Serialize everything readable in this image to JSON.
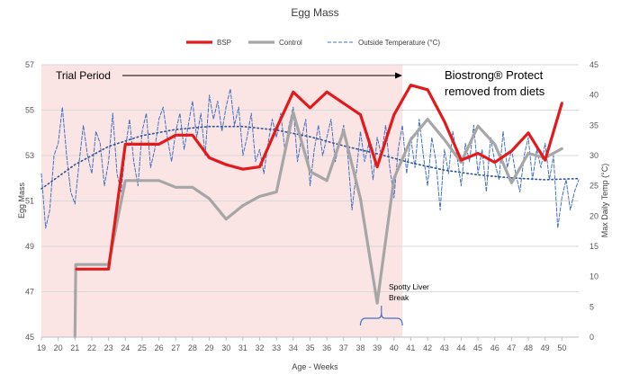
{
  "chart_data": {
    "type": "line",
    "title": "Egg Mass",
    "xlabel": "Age - Weeks",
    "ylabel": "Egg Mass",
    "y2label": "Max Daily Temp (°C)",
    "x_categories": [
      "19",
      "20",
      "21",
      "22",
      "23",
      "24",
      "25",
      "26",
      "27",
      "28",
      "29",
      "30",
      "31",
      "32",
      "33",
      "34",
      "35",
      "36",
      "37",
      "38",
      "39",
      "40",
      "41",
      "42",
      "43",
      "44",
      "45",
      "46",
      "47",
      "48",
      "49",
      "50"
    ],
    "xlim": [
      19,
      51
    ],
    "ylim": [
      45,
      57
    ],
    "y_ticks": [
      45,
      47,
      49,
      51,
      53,
      55,
      57
    ],
    "y2lim": [
      0,
      45
    ],
    "y2_ticks": [
      0,
      5,
      10,
      15,
      20,
      25,
      30,
      35,
      40,
      45
    ],
    "legend": {
      "placement": "top-center",
      "entries": [
        "BSP",
        "Control",
        "Outside Temperature (°C)"
      ]
    },
    "colors": {
      "bsp": "#e31a1c",
      "control": "#a6a6a6",
      "temperature": "#4472c4",
      "trial_shade": "#fbe4e4",
      "grid": "#d9d9d9",
      "bracket": "#4472c4"
    },
    "series": [
      {
        "name": "BSP",
        "axis": "left",
        "points": [
          [
            21.1,
            48.0
          ],
          [
            22,
            48.0
          ],
          [
            23,
            48.0
          ],
          [
            24,
            53.5
          ],
          [
            25,
            53.5
          ],
          [
            26,
            53.5
          ],
          [
            27,
            53.9
          ],
          [
            28,
            53.9
          ],
          [
            29,
            52.9
          ],
          [
            30,
            52.6
          ],
          [
            31,
            52.4
          ],
          [
            32,
            52.5
          ],
          [
            33,
            54.2
          ],
          [
            34,
            55.8
          ],
          [
            35,
            55.1
          ],
          [
            36,
            55.8
          ],
          [
            37,
            55.3
          ],
          [
            38,
            54.8
          ],
          [
            39,
            52.5
          ],
          [
            40,
            54.8
          ],
          [
            41,
            56.1
          ],
          [
            42,
            55.9
          ],
          [
            43,
            54.5
          ],
          [
            44,
            52.8
          ],
          [
            45,
            53.1
          ],
          [
            46,
            52.7
          ],
          [
            47,
            53.2
          ],
          [
            48,
            54.0
          ],
          [
            49,
            52.8
          ],
          [
            50,
            55.3
          ]
        ]
      },
      {
        "name": "Control",
        "axis": "left",
        "points": [
          [
            21,
            45.0
          ],
          [
            21.05,
            48.2
          ],
          [
            22,
            48.2
          ],
          [
            23,
            48.2
          ],
          [
            24,
            51.9
          ],
          [
            25,
            51.9
          ],
          [
            26,
            51.9
          ],
          [
            27,
            51.6
          ],
          [
            28,
            51.6
          ],
          [
            29,
            51.1
          ],
          [
            30,
            50.2
          ],
          [
            31,
            50.8
          ],
          [
            32,
            51.2
          ],
          [
            33,
            51.4
          ],
          [
            34,
            54.9
          ],
          [
            35,
            52.3
          ],
          [
            36,
            51.9
          ],
          [
            37,
            54.1
          ],
          [
            38,
            51.1
          ],
          [
            39,
            46.5
          ],
          [
            40,
            52.0
          ],
          [
            41,
            53.7
          ],
          [
            42,
            54.6
          ],
          [
            43,
            53.7
          ],
          [
            44,
            52.7
          ],
          [
            45,
            54.3
          ],
          [
            46,
            53.5
          ],
          [
            47,
            51.8
          ],
          [
            48,
            53.1
          ],
          [
            49,
            52.9
          ],
          [
            50,
            53.3
          ]
        ]
      },
      {
        "name": "Outside Temperature (°C)",
        "axis": "right",
        "style": "dashed",
        "points": [
          [
            19,
            27
          ],
          [
            19.25,
            18
          ],
          [
            19.5,
            21
          ],
          [
            19.75,
            30
          ],
          [
            20,
            32
          ],
          [
            20.25,
            38
          ],
          [
            20.5,
            30
          ],
          [
            20.75,
            24
          ],
          [
            21,
            22
          ],
          [
            21.25,
            29
          ],
          [
            21.5,
            35
          ],
          [
            21.75,
            30
          ],
          [
            22,
            27
          ],
          [
            22.25,
            34
          ],
          [
            22.5,
            32
          ],
          [
            22.75,
            25
          ],
          [
            23,
            29
          ],
          [
            23.25,
            37
          ],
          [
            23.5,
            27
          ],
          [
            23.75,
            24
          ],
          [
            24,
            31
          ],
          [
            24.25,
            36
          ],
          [
            24.5,
            29
          ],
          [
            24.75,
            25
          ],
          [
            25,
            34
          ],
          [
            25.25,
            37
          ],
          [
            25.5,
            28
          ],
          [
            25.75,
            31
          ],
          [
            26,
            36
          ],
          [
            26.25,
            38
          ],
          [
            26.5,
            33
          ],
          [
            26.75,
            29
          ],
          [
            27,
            34
          ],
          [
            27.25,
            37
          ],
          [
            27.5,
            31
          ],
          [
            27.75,
            35
          ],
          [
            28,
            39
          ],
          [
            28.25,
            33
          ],
          [
            28.5,
            37
          ],
          [
            28.75,
            30
          ],
          [
            29,
            40
          ],
          [
            29.25,
            36
          ],
          [
            29.5,
            39
          ],
          [
            29.75,
            34
          ],
          [
            30,
            38
          ],
          [
            30.25,
            41
          ],
          [
            30.5,
            35
          ],
          [
            30.75,
            38
          ],
          [
            31,
            30
          ],
          [
            31.25,
            33
          ],
          [
            31.5,
            37
          ],
          [
            31.75,
            29
          ],
          [
            32,
            31
          ],
          [
            32.25,
            27
          ],
          [
            32.5,
            32
          ],
          [
            32.75,
            36
          ],
          [
            33,
            33
          ],
          [
            33.25,
            37
          ],
          [
            33.5,
            31
          ],
          [
            33.75,
            35
          ],
          [
            34,
            38
          ],
          [
            34.25,
            29
          ],
          [
            34.5,
            33
          ],
          [
            34.75,
            36
          ],
          [
            35,
            25
          ],
          [
            35.25,
            31
          ],
          [
            35.5,
            35
          ],
          [
            35.75,
            30
          ],
          [
            36,
            33
          ],
          [
            36.25,
            36
          ],
          [
            36.5,
            29
          ],
          [
            36.75,
            32
          ],
          [
            37,
            35
          ],
          [
            37.25,
            30
          ],
          [
            37.5,
            21
          ],
          [
            37.75,
            27
          ],
          [
            38,
            34
          ],
          [
            38.25,
            29
          ],
          [
            38.5,
            32
          ],
          [
            38.75,
            26
          ],
          [
            39,
            33
          ],
          [
            39.25,
            30
          ],
          [
            39.5,
            35
          ],
          [
            39.75,
            28
          ],
          [
            40,
            23
          ],
          [
            40.25,
            31
          ],
          [
            40.5,
            35
          ],
          [
            40.75,
            27
          ],
          [
            41,
            33
          ],
          [
            41.25,
            28
          ],
          [
            41.5,
            36
          ],
          [
            41.75,
            30
          ],
          [
            42,
            25
          ],
          [
            42.25,
            33
          ],
          [
            42.5,
            29
          ],
          [
            42.75,
            21
          ],
          [
            43,
            31
          ],
          [
            43.25,
            27
          ],
          [
            43.5,
            34
          ],
          [
            43.75,
            30
          ],
          [
            44,
            25
          ],
          [
            44.25,
            32
          ],
          [
            44.5,
            29
          ],
          [
            44.75,
            35
          ],
          [
            45,
            27
          ],
          [
            45.25,
            31
          ],
          [
            45.5,
            24
          ],
          [
            45.75,
            33
          ],
          [
            46,
            29
          ],
          [
            46.25,
            26
          ],
          [
            46.5,
            34
          ],
          [
            46.75,
            28
          ],
          [
            47,
            31
          ],
          [
            47.25,
            27
          ],
          [
            47.5,
            24
          ],
          [
            47.75,
            30
          ],
          [
            48,
            33
          ],
          [
            48.25,
            26
          ],
          [
            48.5,
            31
          ],
          [
            48.75,
            28
          ],
          [
            49,
            32
          ],
          [
            49.25,
            26
          ],
          [
            49.5,
            30
          ],
          [
            49.75,
            18
          ],
          [
            50,
            23
          ],
          [
            50.25,
            26
          ],
          [
            50.5,
            21
          ],
          [
            50.75,
            24
          ],
          [
            51,
            26
          ]
        ]
      },
      {
        "name": "Temperature trend",
        "axis": "right",
        "style": "dotted",
        "points": [
          [
            19,
            24.5
          ],
          [
            21,
            28.5
          ],
          [
            23,
            31.5
          ],
          [
            25,
            33.3
          ],
          [
            27,
            34.3
          ],
          [
            29,
            34.8
          ],
          [
            31,
            34.8
          ],
          [
            33,
            34.2
          ],
          [
            35,
            33.1
          ],
          [
            37,
            31.6
          ],
          [
            39,
            30.3
          ],
          [
            41,
            28.8
          ],
          [
            43,
            27.6
          ],
          [
            45,
            26.8
          ],
          [
            47,
            26.3
          ],
          [
            49,
            26.0
          ],
          [
            51,
            26.2
          ]
        ]
      }
    ],
    "shaded_region": {
      "x_start": 19,
      "x_end": 40.5,
      "label": "Trial Period"
    },
    "annotations": {
      "trial_period": "Trial Period",
      "removed": "Biostrong® Protect removed from diets",
      "removed_line1": "Biostrong® Protect",
      "removed_line2": "removed from diets",
      "break_line1": "Spotty Liver",
      "break_line2": "Break",
      "break_bracket_x": [
        38,
        40.5
      ]
    }
  }
}
